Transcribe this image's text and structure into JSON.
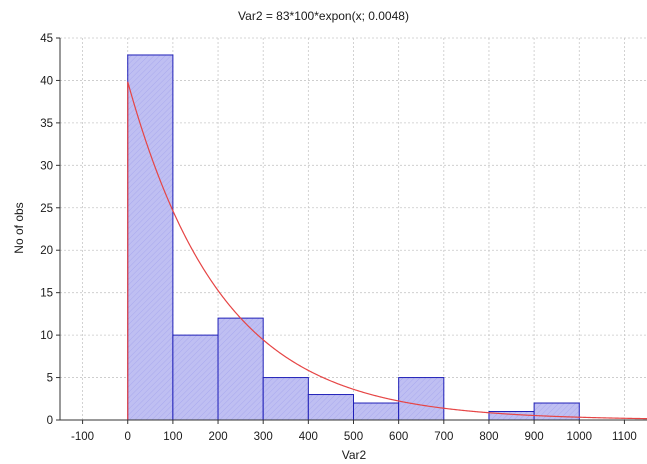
{
  "chart_data": {
    "type": "bar",
    "title": "Var2 = 83*100*expon(x; 0.0048)",
    "xlabel": "Var2",
    "ylabel": "No of obs",
    "xlim": [
      -150,
      1150
    ],
    "ylim": [
      0,
      45
    ],
    "x_ticks": [
      -100,
      0,
      100,
      200,
      300,
      400,
      500,
      600,
      700,
      800,
      900,
      1000,
      1100
    ],
    "y_ticks": [
      0,
      5,
      10,
      15,
      20,
      25,
      30,
      35,
      40,
      45
    ],
    "bin_width": 100,
    "bin_starts": [
      0,
      100,
      200,
      300,
      400,
      500,
      600,
      700,
      800,
      900
    ],
    "values": [
      43,
      10,
      12,
      5,
      3,
      2,
      5,
      0,
      1,
      2
    ],
    "fit_curve": {
      "type": "exponential",
      "N": 83,
      "bin_width": 100,
      "lambda": 0.0048,
      "x_start": 0,
      "x_end": 1150
    },
    "grid": true,
    "legend": "none",
    "colors": {
      "bar_fill": "#bfbff2",
      "bar_stroke": "#2020b8",
      "curve": "#e64545",
      "grid": "#c8c8c8",
      "axis": "#333333",
      "text": "#1a1a1a"
    }
  }
}
